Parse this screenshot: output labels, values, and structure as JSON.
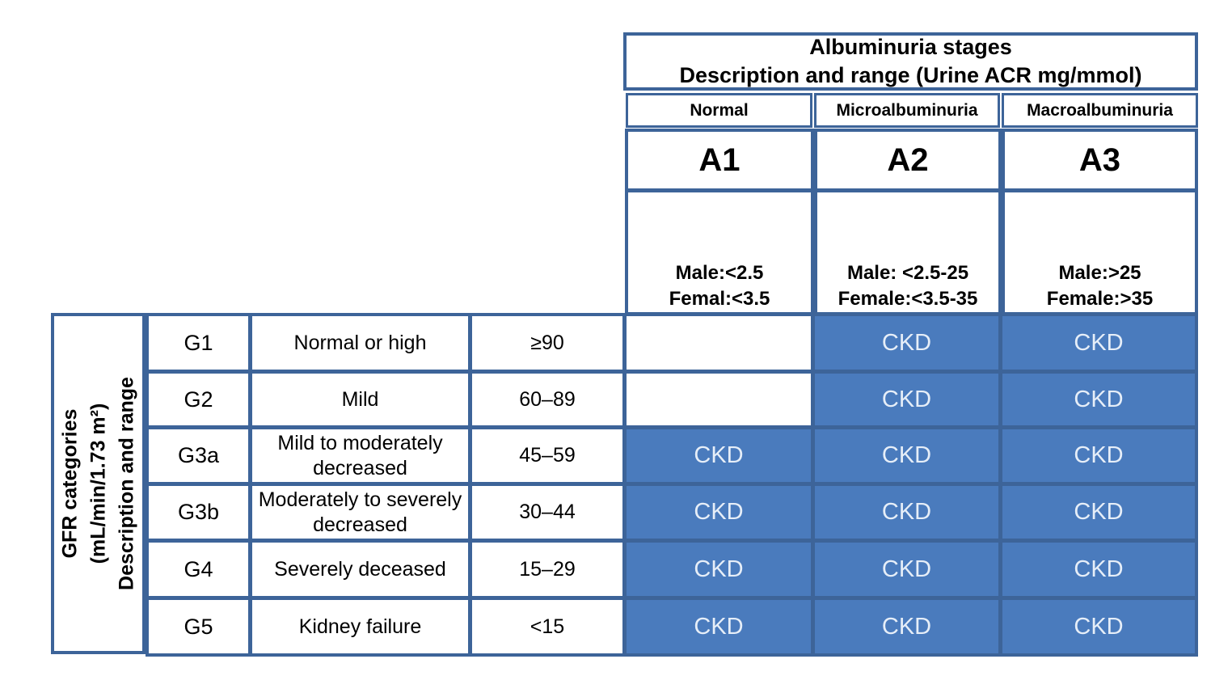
{
  "header": {
    "title_line1": "Albuminuria stages",
    "title_line2": "Description and range (Urine ACR mg/mmol)"
  },
  "columns": [
    {
      "label": "Normal",
      "stage": "A1",
      "range_line1": "Male:<2.5",
      "range_line2": "Femal:<3.5"
    },
    {
      "label": "Microalbuminuria",
      "stage": "A2",
      "range_line1": "Male: <2.5-25",
      "range_line2": "Female:<3.5-35"
    },
    {
      "label": "Macroalbuminuria",
      "stage": "A3",
      "range_line1": "Male:>25",
      "range_line2": "Female:>35"
    }
  ],
  "side_label": {
    "line1": "GFR categories",
    "line2": "(mL/min/1.73 m²)",
    "line3": "Description and range"
  },
  "rows": [
    {
      "category": "G1",
      "description": "Normal or high",
      "gfr": "≥90",
      "cells": [
        "",
        "CKD",
        "CKD"
      ]
    },
    {
      "category": "G2",
      "description": "Mild",
      "gfr": "60–89",
      "cells": [
        "",
        "CKD",
        "CKD"
      ]
    },
    {
      "category": "G3a",
      "description": "Mild to moderately decreased",
      "gfr": "45–59",
      "cells": [
        "CKD",
        "CKD",
        "CKD"
      ]
    },
    {
      "category": "G3b",
      "description": "Moderately to severely decreased",
      "gfr": "30–44",
      "cells": [
        "CKD",
        "CKD",
        "CKD"
      ]
    },
    {
      "category": "G4",
      "description": "Severely deceased",
      "gfr": "15–29",
      "cells": [
        "CKD",
        "CKD",
        "CKD"
      ]
    },
    {
      "category": "G5",
      "description": "Kidney failure",
      "gfr": "<15",
      "cells": [
        "CKD",
        "CKD",
        "CKD"
      ]
    }
  ],
  "colors": {
    "border": "#3d6499",
    "ckd_fill": "#4a7bbd",
    "ckd_text": "#e6eef8"
  }
}
